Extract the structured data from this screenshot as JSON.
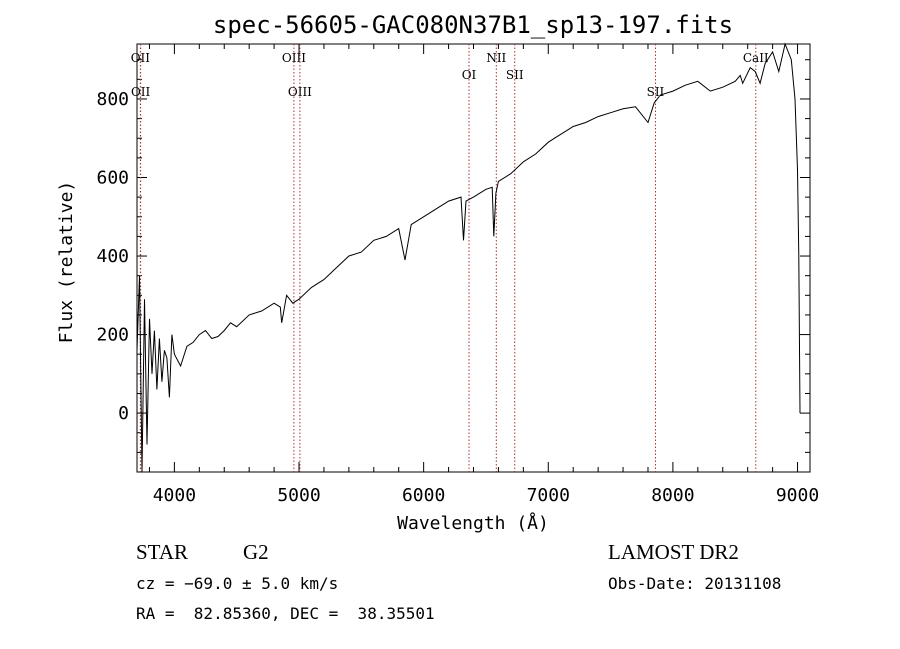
{
  "chart_data": {
    "type": "line",
    "title": "spec-56605-GAC080N37B1_sp13-197.fits",
    "xlabel": "Wavelength (Å)",
    "ylabel": "Flux (relative)",
    "xlim": [
      3700,
      9100
    ],
    "ylim": [
      -150,
      940
    ],
    "xticks": [
      4000,
      5000,
      6000,
      7000,
      8000,
      9000
    ],
    "yticks": [
      0,
      200,
      400,
      600,
      800
    ],
    "series": [
      {
        "x": [
          3700,
          3720,
          3740,
          3760,
          3780,
          3800,
          3820,
          3840,
          3860,
          3880,
          3900,
          3920,
          3940,
          3960,
          3980,
          4000,
          4050,
          4100,
          4150,
          4200,
          4250,
          4300,
          4350,
          4400,
          4450,
          4500,
          4600,
          4700,
          4800,
          4850,
          4861,
          4900,
          4950,
          5000,
          5100,
          5200,
          5300,
          5400,
          5500,
          5600,
          5700,
          5800,
          5850,
          5900,
          6000,
          6100,
          6200,
          6300,
          6320,
          6340,
          6400,
          6500,
          6550,
          6563,
          6580,
          6600,
          6700,
          6800,
          6900,
          7000,
          7100,
          7200,
          7300,
          7400,
          7500,
          7600,
          7700,
          7800,
          7850,
          7900,
          8000,
          8100,
          8200,
          8300,
          8400,
          8500,
          8540,
          8560,
          8620,
          8660,
          8700,
          8740,
          8800,
          8850,
          8900,
          8950,
          8980,
          9000,
          9010,
          9020
        ],
        "y": [
          160,
          350,
          -150,
          290,
          -80,
          240,
          100,
          210,
          60,
          190,
          80,
          160,
          140,
          40,
          200,
          150,
          120,
          170,
          180,
          200,
          210,
          190,
          195,
          210,
          230,
          220,
          250,
          260,
          280,
          270,
          230,
          300,
          280,
          290,
          320,
          340,
          370,
          400,
          410,
          440,
          450,
          470,
          390,
          480,
          500,
          520,
          540,
          550,
          440,
          540,
          550,
          570,
          575,
          450,
          560,
          590,
          610,
          640,
          660,
          690,
          710,
          730,
          740,
          755,
          765,
          775,
          780,
          740,
          790,
          810,
          820,
          835,
          845,
          820,
          830,
          845,
          860,
          840,
          880,
          870,
          840,
          890,
          920,
          870,
          940,
          900,
          800,
          620,
          400,
          0
        ]
      }
    ],
    "annotations": [
      {
        "label": "OII",
        "x": 3727,
        "tier": 1
      },
      {
        "label": "OII",
        "x": 3729,
        "tier": 2
      },
      {
        "label": "OIII",
        "x": 4959,
        "tier": 1
      },
      {
        "label": "OIII",
        "x": 5007,
        "tier": 2
      },
      {
        "label": "OI",
        "x": 6364,
        "tier": 2
      },
      {
        "label": "NII",
        "x": 6583,
        "tier": 1
      },
      {
        "label": "SII",
        "x": 6731,
        "tier": 2
      },
      {
        "label": "SII",
        "x": 7860,
        "tier": 2
      },
      {
        "label": "CaII",
        "x": 8665,
        "tier": 1
      }
    ],
    "grid": false
  },
  "info": {
    "class": "STAR",
    "subclass": "G2",
    "survey": "LAMOST DR2",
    "cz": "cz = −69.0 ± 5.0 km/s",
    "obs_date": "Obs-Date: 20131108",
    "radec": "RA =  82.85360, DEC =  38.35501"
  }
}
